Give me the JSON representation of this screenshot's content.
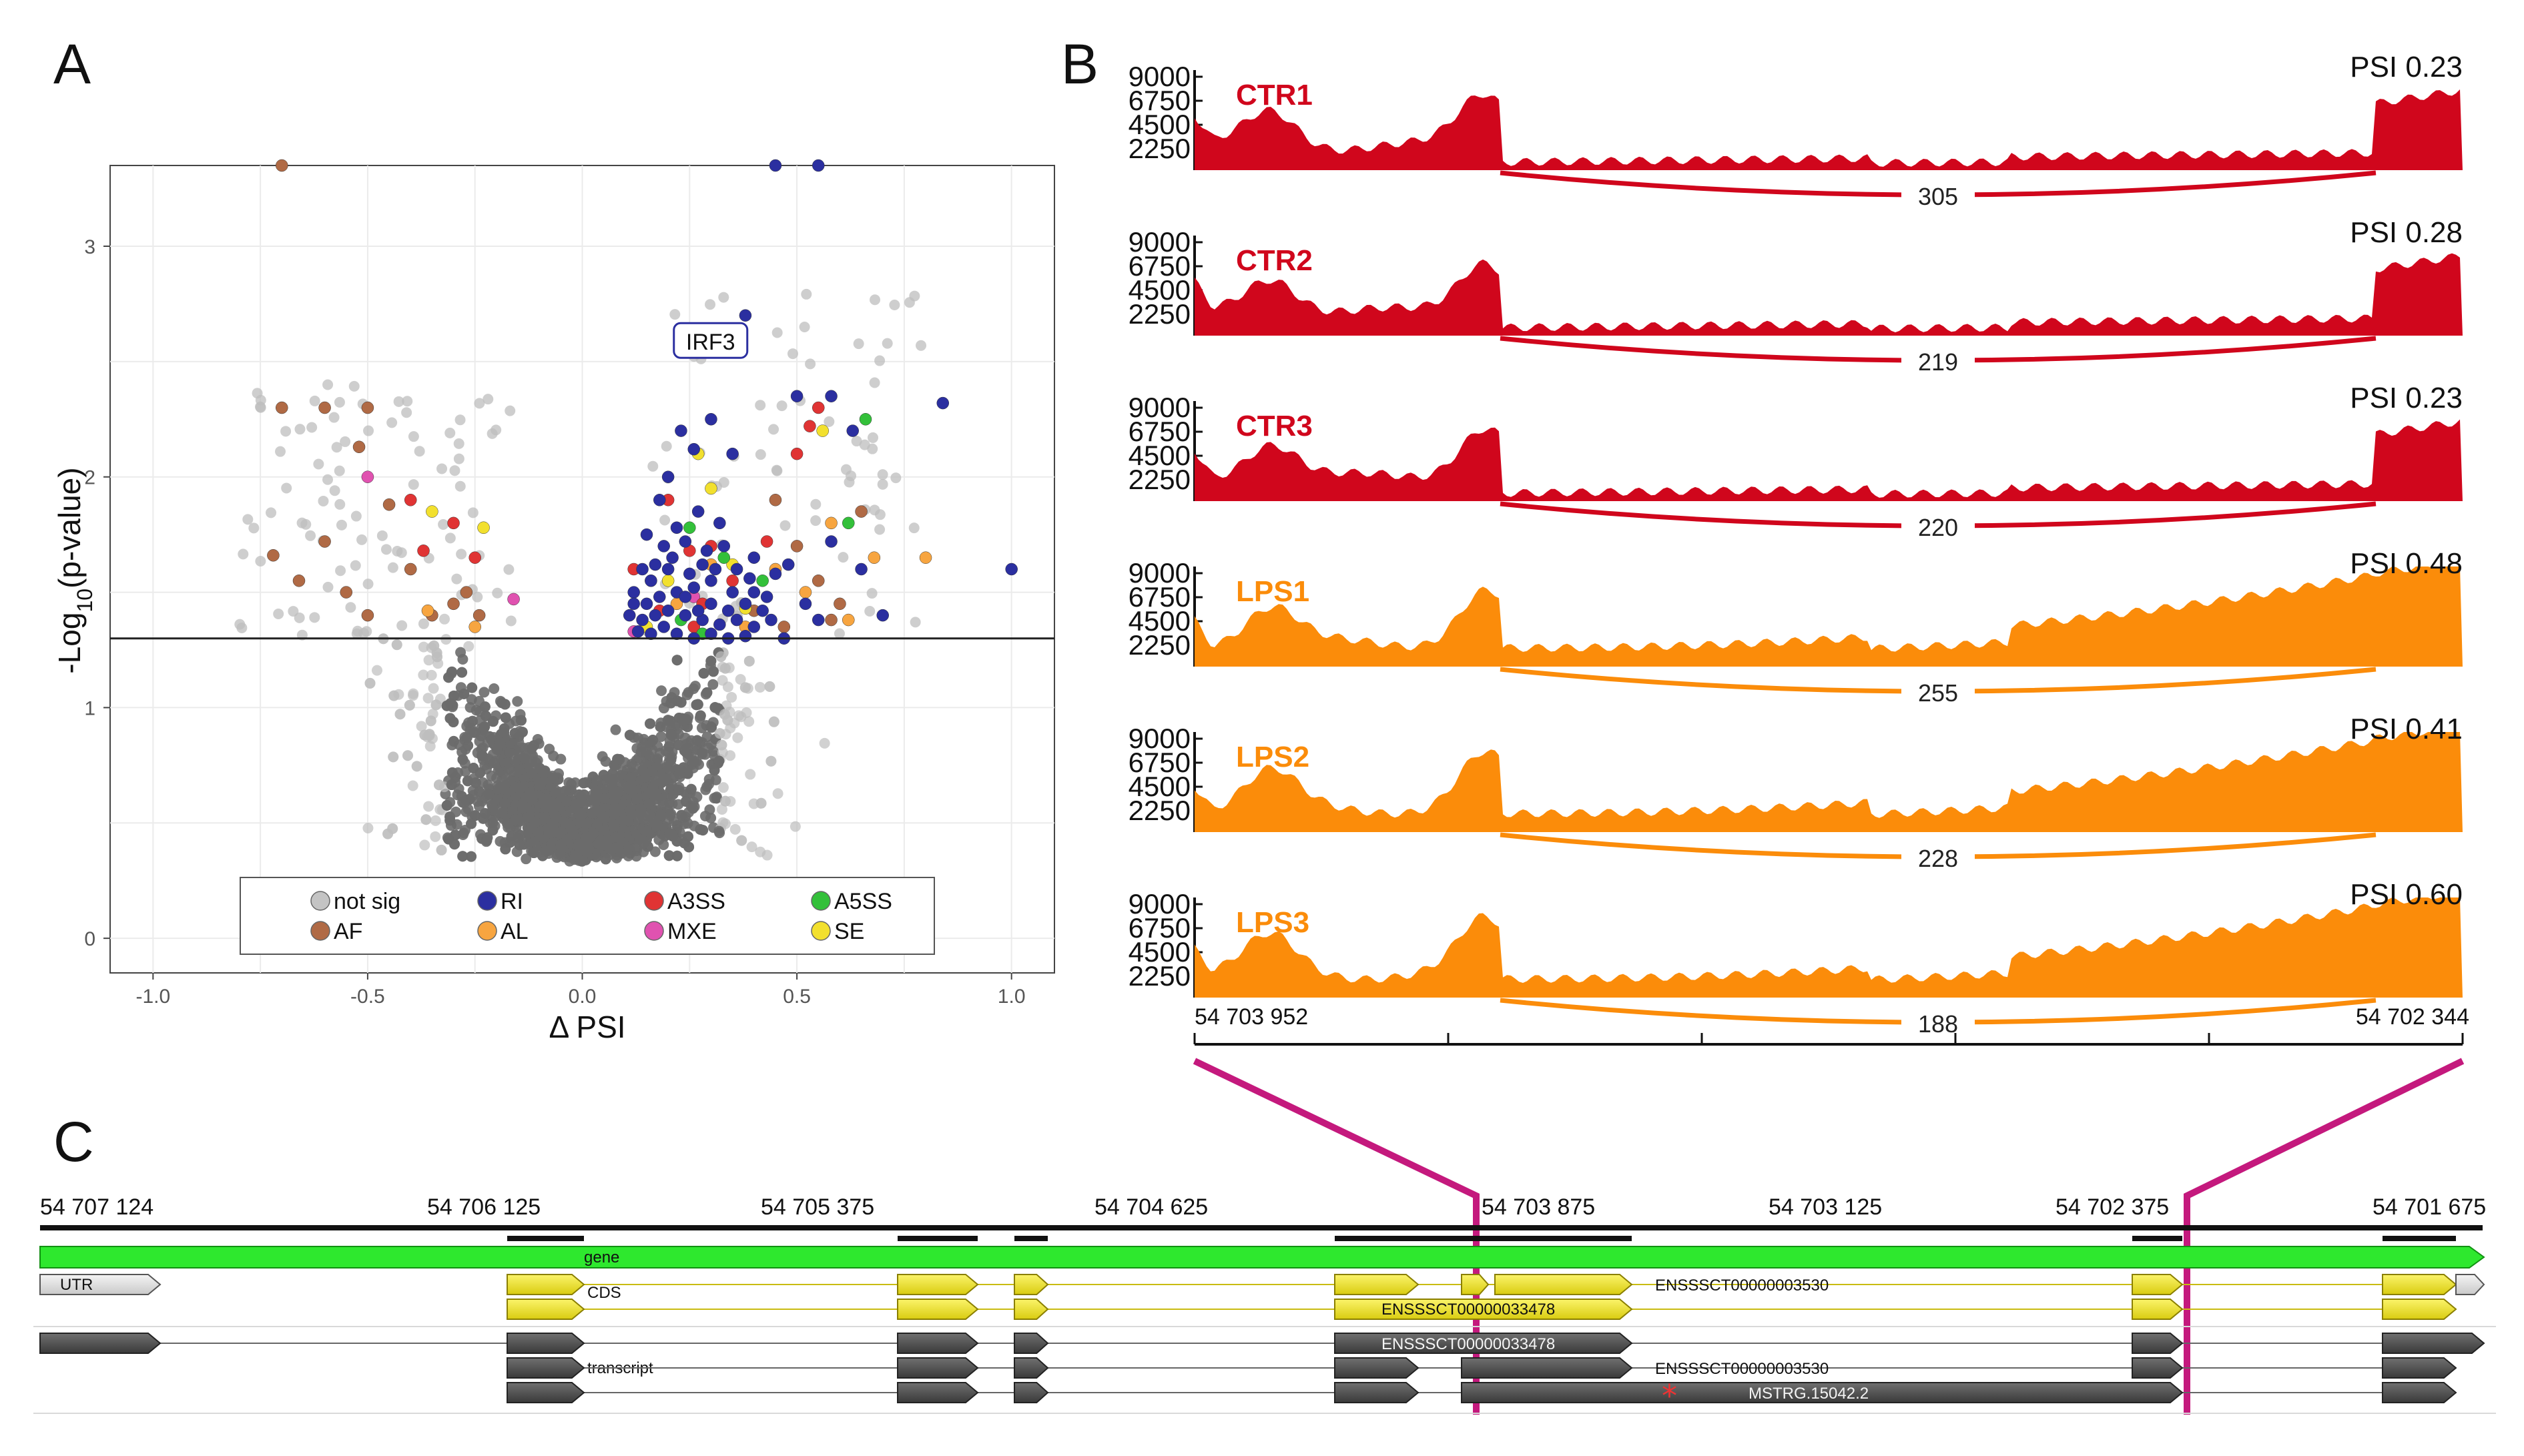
{
  "panels": {
    "a": "A",
    "b": "B",
    "c": "C"
  },
  "volcano": {
    "x_label": "Δ PSI",
    "y_label_main": "-Log",
    "y_label_sub": "10",
    "y_label_tail": "(p-value)",
    "x_ticks": [
      {
        "value": -1.0,
        "label": "-1.0"
      },
      {
        "value": -0.5,
        "label": "-0.5"
      },
      {
        "value": 0.0,
        "label": "0.0"
      },
      {
        "value": 0.5,
        "label": "0.5"
      },
      {
        "value": 1.0,
        "label": "1.0"
      }
    ],
    "y_ticks": [
      {
        "value": 0,
        "label": "0"
      },
      {
        "value": 1,
        "label": "1"
      },
      {
        "value": 2,
        "label": "2"
      },
      {
        "value": 3,
        "label": "3"
      }
    ],
    "xlim": [
      -1.1,
      1.1
    ],
    "ylim": [
      -0.15,
      3.35
    ],
    "threshold": 1.3,
    "annotation": {
      "label": "IRF3",
      "x": 0.33,
      "y": 2.58
    },
    "legend": [
      {
        "label": "not sig",
        "color": "#c4c4c4"
      },
      {
        "label": "RI",
        "color": "#2b2fa0"
      },
      {
        "label": "A3SS",
        "color": "#e03434"
      },
      {
        "label": "A5SS",
        "color": "#33c03a"
      },
      {
        "label": "AF",
        "color": "#b06a45"
      },
      {
        "label": "AL",
        "color": "#f7a540"
      },
      {
        "label": "MXE",
        "color": "#e052b0"
      },
      {
        "label": "SE",
        "color": "#f2e02e"
      }
    ]
  },
  "chart_data": {
    "type": "scatter",
    "title": "",
    "xlabel": "Δ PSI",
    "ylabel": "-Log10(p-value)",
    "xlim": [
      -1.1,
      1.1
    ],
    "ylim": [
      -0.15,
      3.35
    ],
    "grid": true,
    "legend_position": "bottom-inside",
    "series": [
      {
        "name": "AF",
        "color": "#b06a45",
        "points": [
          [
            -0.7,
            2.3
          ],
          [
            -0.6,
            2.3
          ],
          [
            -0.5,
            2.3
          ],
          [
            -0.72,
            1.66
          ],
          [
            -0.6,
            1.72
          ],
          [
            -0.5,
            1.4
          ],
          [
            -0.35,
            1.4
          ],
          [
            -0.3,
            1.45
          ],
          [
            -0.55,
            1.5
          ],
          [
            -0.66,
            1.55
          ],
          [
            -0.52,
            2.13
          ],
          [
            -0.45,
            1.88
          ],
          [
            -0.4,
            1.6
          ],
          [
            -0.27,
            1.5
          ],
          [
            -0.24,
            1.4
          ],
          [
            -0.7,
            3.35
          ],
          [
            0.6,
            1.45
          ],
          [
            0.65,
            1.85
          ],
          [
            0.45,
            1.9
          ],
          [
            0.5,
            1.7
          ],
          [
            0.55,
            1.55
          ],
          [
            0.58,
            1.38
          ],
          [
            0.4,
            1.42
          ],
          [
            0.47,
            1.35
          ]
        ]
      },
      {
        "name": "MXE",
        "color": "#e052b0",
        "points": [
          [
            -0.5,
            2.0
          ],
          [
            -0.16,
            1.47
          ],
          [
            0.26,
            1.48
          ],
          [
            0.12,
            1.33
          ]
        ]
      },
      {
        "name": "AL",
        "color": "#f7a540",
        "points": [
          [
            0.8,
            1.65
          ],
          [
            0.58,
            1.8
          ],
          [
            0.68,
            1.65
          ],
          [
            0.52,
            1.5
          ],
          [
            0.45,
            1.6
          ],
          [
            0.3,
            1.62
          ],
          [
            0.22,
            1.45
          ],
          [
            -0.25,
            1.35
          ],
          [
            -0.36,
            1.42
          ],
          [
            0.38,
            1.35
          ],
          [
            0.16,
            1.55
          ],
          [
            0.62,
            1.38
          ]
        ]
      },
      {
        "name": "A3SS",
        "color": "#e03434",
        "points": [
          [
            0.53,
            2.22
          ],
          [
            0.55,
            2.3
          ],
          [
            0.5,
            2.1
          ],
          [
            -0.4,
            1.9
          ],
          [
            -0.37,
            1.68
          ],
          [
            -0.3,
            1.8
          ],
          [
            -0.25,
            1.65
          ],
          [
            0.2,
            1.9
          ],
          [
            0.25,
            1.68
          ],
          [
            0.3,
            1.7
          ],
          [
            0.35,
            1.55
          ],
          [
            0.18,
            1.42
          ],
          [
            0.28,
            1.45
          ],
          [
            0.43,
            1.72
          ],
          [
            0.12,
            1.6
          ],
          [
            0.26,
            1.35
          ]
        ]
      },
      {
        "name": "SE",
        "color": "#f2e02e",
        "points": [
          [
            0.56,
            2.2
          ],
          [
            0.27,
            2.1
          ],
          [
            0.3,
            1.95
          ],
          [
            -0.35,
            1.85
          ],
          [
            -0.23,
            1.78
          ],
          [
            0.38,
            1.43
          ],
          [
            0.35,
            1.62
          ],
          [
            0.2,
            1.55
          ],
          [
            0.15,
            1.35
          ]
        ]
      },
      {
        "name": "A5SS",
        "color": "#33c03a",
        "points": [
          [
            0.66,
            2.25
          ],
          [
            0.62,
            1.8
          ],
          [
            0.25,
            1.78
          ],
          [
            0.33,
            1.65
          ],
          [
            0.42,
            1.55
          ],
          [
            0.23,
            1.38
          ],
          [
            0.28,
            1.32
          ]
        ]
      },
      {
        "name": "RI",
        "color": "#2b2fa0",
        "points": [
          [
            0.38,
            2.7
          ],
          [
            0.45,
            3.35
          ],
          [
            0.55,
            3.35
          ],
          [
            0.5,
            2.35
          ],
          [
            0.58,
            2.35
          ],
          [
            0.63,
            2.2
          ],
          [
            0.84,
            2.32
          ],
          [
            1.0,
            1.6
          ],
          [
            0.26,
            2.12
          ],
          [
            0.3,
            2.25
          ],
          [
            0.23,
            2.2
          ],
          [
            0.35,
            2.1
          ],
          [
            0.2,
            2.0
          ],
          [
            0.18,
            1.9
          ],
          [
            0.27,
            1.85
          ],
          [
            0.22,
            1.78
          ],
          [
            0.32,
            1.8
          ],
          [
            0.15,
            1.75
          ],
          [
            0.19,
            1.7
          ],
          [
            0.24,
            1.72
          ],
          [
            0.28,
            1.62
          ],
          [
            0.33,
            1.7
          ],
          [
            0.36,
            1.6
          ],
          [
            0.4,
            1.65
          ],
          [
            0.45,
            1.58
          ],
          [
            0.14,
            1.6
          ],
          [
            0.16,
            1.55
          ],
          [
            0.2,
            1.6
          ],
          [
            0.25,
            1.58
          ],
          [
            0.3,
            1.55
          ],
          [
            0.35,
            1.5
          ],
          [
            0.4,
            1.5
          ],
          [
            0.12,
            1.5
          ],
          [
            0.15,
            1.45
          ],
          [
            0.18,
            1.48
          ],
          [
            0.22,
            1.5
          ],
          [
            0.26,
            1.52
          ],
          [
            0.3,
            1.45
          ],
          [
            0.34,
            1.42
          ],
          [
            0.38,
            1.45
          ],
          [
            0.42,
            1.42
          ],
          [
            0.11,
            1.4
          ],
          [
            0.14,
            1.38
          ],
          [
            0.17,
            1.4
          ],
          [
            0.2,
            1.42
          ],
          [
            0.24,
            1.4
          ],
          [
            0.28,
            1.38
          ],
          [
            0.32,
            1.36
          ],
          [
            0.36,
            1.38
          ],
          [
            0.4,
            1.35
          ],
          [
            0.44,
            1.38
          ],
          [
            0.13,
            1.33
          ],
          [
            0.16,
            1.32
          ],
          [
            0.19,
            1.35
          ],
          [
            0.22,
            1.32
          ],
          [
            0.26,
            1.3
          ],
          [
            0.3,
            1.32
          ],
          [
            0.34,
            1.3
          ],
          [
            0.38,
            1.31
          ],
          [
            0.12,
            1.45
          ],
          [
            0.27,
            1.42
          ],
          [
            0.21,
            1.65
          ],
          [
            0.31,
            1.6
          ],
          [
            0.48,
            1.62
          ],
          [
            0.52,
            1.45
          ],
          [
            0.58,
            1.72
          ],
          [
            0.65,
            1.6
          ],
          [
            0.7,
            1.4
          ],
          [
            0.47,
            1.3
          ],
          [
            0.17,
            1.62
          ],
          [
            0.24,
            1.48
          ],
          [
            0.29,
            1.68
          ],
          [
            0.39,
            1.56
          ],
          [
            0.43,
            1.48
          ],
          [
            0.55,
            1.38
          ]
        ]
      }
    ]
  },
  "sashimi": {
    "y_ticks": [
      "9000",
      "6750",
      "4500",
      "2250"
    ],
    "x_start_label": "54 703 952",
    "x_end_label": "54 702 344",
    "samples": [
      {
        "name": "CTR1",
        "psi": "PSI 0.23",
        "junction": "305",
        "color": "#d0061c"
      },
      {
        "name": "CTR2",
        "psi": "PSI 0.28",
        "junction": "219",
        "color": "#d0061c"
      },
      {
        "name": "CTR3",
        "psi": "PSI 0.23",
        "junction": "220",
        "color": "#d0061c"
      },
      {
        "name": "LPS1",
        "psi": "PSI 0.48",
        "junction": "255",
        "color": "#fb8c0a"
      },
      {
        "name": "LPS2",
        "psi": "PSI 0.41",
        "junction": "228",
        "color": "#fb8c0a"
      },
      {
        "name": "LPS3",
        "psi": "PSI 0.60",
        "junction": "188",
        "color": "#fb8c0a"
      }
    ]
  },
  "genome": {
    "coords": [
      "54 707 124",
      "54 706 125",
      "54 705 375",
      "54 704 625",
      "54 703 875",
      "54 703 125",
      "54 702 375",
      "54 701 675"
    ],
    "labels": {
      "gene": "gene",
      "utr": "UTR",
      "cds": "CDS",
      "transcript": "transcript",
      "tx1": "ENSSSCT00000003530",
      "tx2": "ENSSSCT00000033478",
      "tx3": "ENSSSCT00000033478",
      "tx4": "ENSSSCT00000003530",
      "tx5": "MSTRG.15042.2"
    },
    "colors": {
      "gene": "#2ee82e",
      "cds": "#f5ec16",
      "transcript": "#555555",
      "highlight": "#c4197d"
    }
  }
}
